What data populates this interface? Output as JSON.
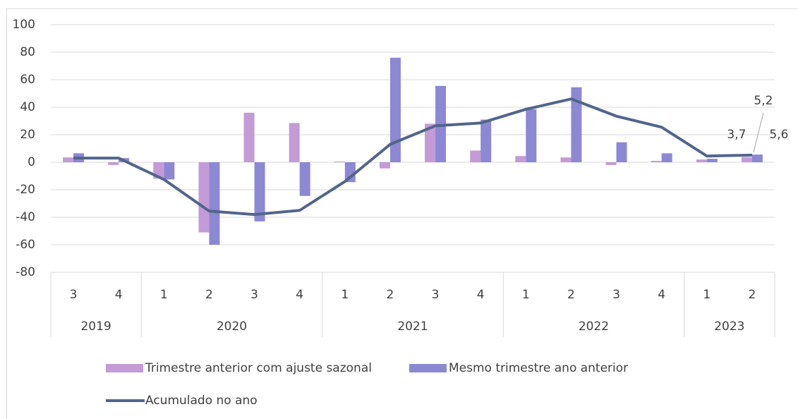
{
  "chart_data": {
    "type": "bar-line",
    "category_groups": [
      {
        "label": "2019",
        "categories": [
          "3",
          "4"
        ]
      },
      {
        "label": "2020",
        "categories": [
          "1",
          "2",
          "3",
          "4"
        ]
      },
      {
        "label": "2021",
        "categories": [
          "1",
          "2",
          "3",
          "4"
        ]
      },
      {
        "label": "2022",
        "categories": [
          "1",
          "2",
          "3",
          "4"
        ]
      },
      {
        "label": "2023",
        "categories": [
          "1",
          "2"
        ]
      }
    ],
    "series": [
      {
        "name": "Trimestre anterior com ajuste sazonal",
        "type": "bar",
        "color": "#c39bd6",
        "values": [
          3.5,
          -2,
          -12,
          -51,
          36,
          28.5,
          0.5,
          -4.5,
          28,
          8.5,
          4.5,
          3.5,
          -2,
          1,
          2,
          3.7
        ],
        "value_labels": [
          null,
          null,
          null,
          null,
          null,
          null,
          null,
          null,
          null,
          null,
          null,
          null,
          null,
          null,
          null,
          "3,7"
        ]
      },
      {
        "name": "Mesmo trimestre ano anterior",
        "type": "bar",
        "color": "#8c88d4",
        "values": [
          6.5,
          3,
          -12.5,
          -60,
          -43,
          -24.5,
          -14.5,
          76,
          55.5,
          31,
          38.5,
          54.5,
          14.5,
          6.5,
          2.5,
          5.6
        ],
        "value_labels": [
          null,
          null,
          null,
          null,
          null,
          null,
          null,
          null,
          null,
          null,
          null,
          null,
          null,
          null,
          null,
          "5,6"
        ]
      },
      {
        "name": "Acumulado no ano",
        "type": "line",
        "color": "#52658b",
        "values": [
          3,
          3,
          -12.5,
          -35.5,
          -38,
          -35,
          -14,
          13,
          26.5,
          28.5,
          38.5,
          46,
          33.5,
          25.5,
          4.5,
          5.2
        ],
        "value_labels": [
          null,
          null,
          null,
          null,
          null,
          null,
          null,
          null,
          null,
          null,
          null,
          null,
          null,
          null,
          null,
          "5,2"
        ]
      }
    ],
    "ylim": [
      -80,
      100
    ],
    "yticks": [
      -80,
      -60,
      -40,
      -20,
      0,
      20,
      40,
      60,
      80,
      100
    ],
    "grid": true
  }
}
